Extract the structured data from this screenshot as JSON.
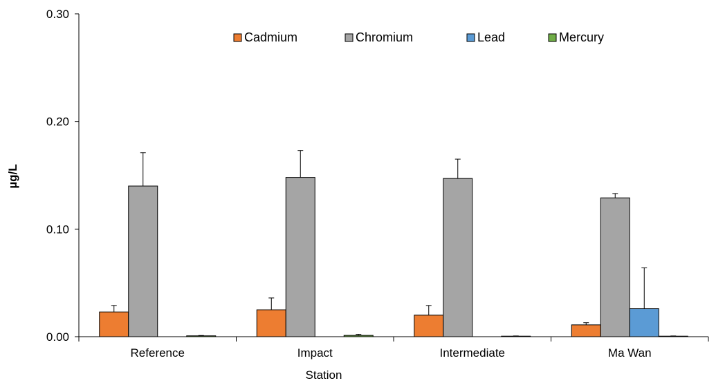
{
  "chart_data": {
    "type": "bar",
    "title": "",
    "xlabel": "Station",
    "ylabel": "µg/L",
    "ylim": [
      0,
      0.3
    ],
    "yticks": [
      "0.00",
      "0.10",
      "0.20",
      "0.30"
    ],
    "categories": [
      "Reference",
      "Impact",
      "Intermediate",
      "Ma Wan"
    ],
    "series": [
      {
        "name": "Cadmium",
        "color": "#ED7D31",
        "values": [
          0.023,
          0.025,
          0.02,
          0.011
        ],
        "errors": [
          0.006,
          0.011,
          0.009,
          0.002
        ]
      },
      {
        "name": "Chromium",
        "color": "#A5A5A5",
        "values": [
          0.14,
          0.148,
          0.147,
          0.129
        ],
        "errors": [
          0.031,
          0.025,
          0.018,
          0.004
        ]
      },
      {
        "name": "Lead",
        "color": "#5B9BD5",
        "values": [
          0.0,
          0.0,
          0.0,
          0.026
        ],
        "errors": [
          0,
          0,
          0,
          0.038
        ]
      },
      {
        "name": "Mercury",
        "color": "#70AD47",
        "values": [
          0.0008,
          0.0012,
          0.0005,
          0.0005
        ],
        "errors": [
          0.0003,
          0.001,
          0.0002,
          0.0002
        ]
      }
    ],
    "grid": false,
    "legend": "top-center"
  }
}
